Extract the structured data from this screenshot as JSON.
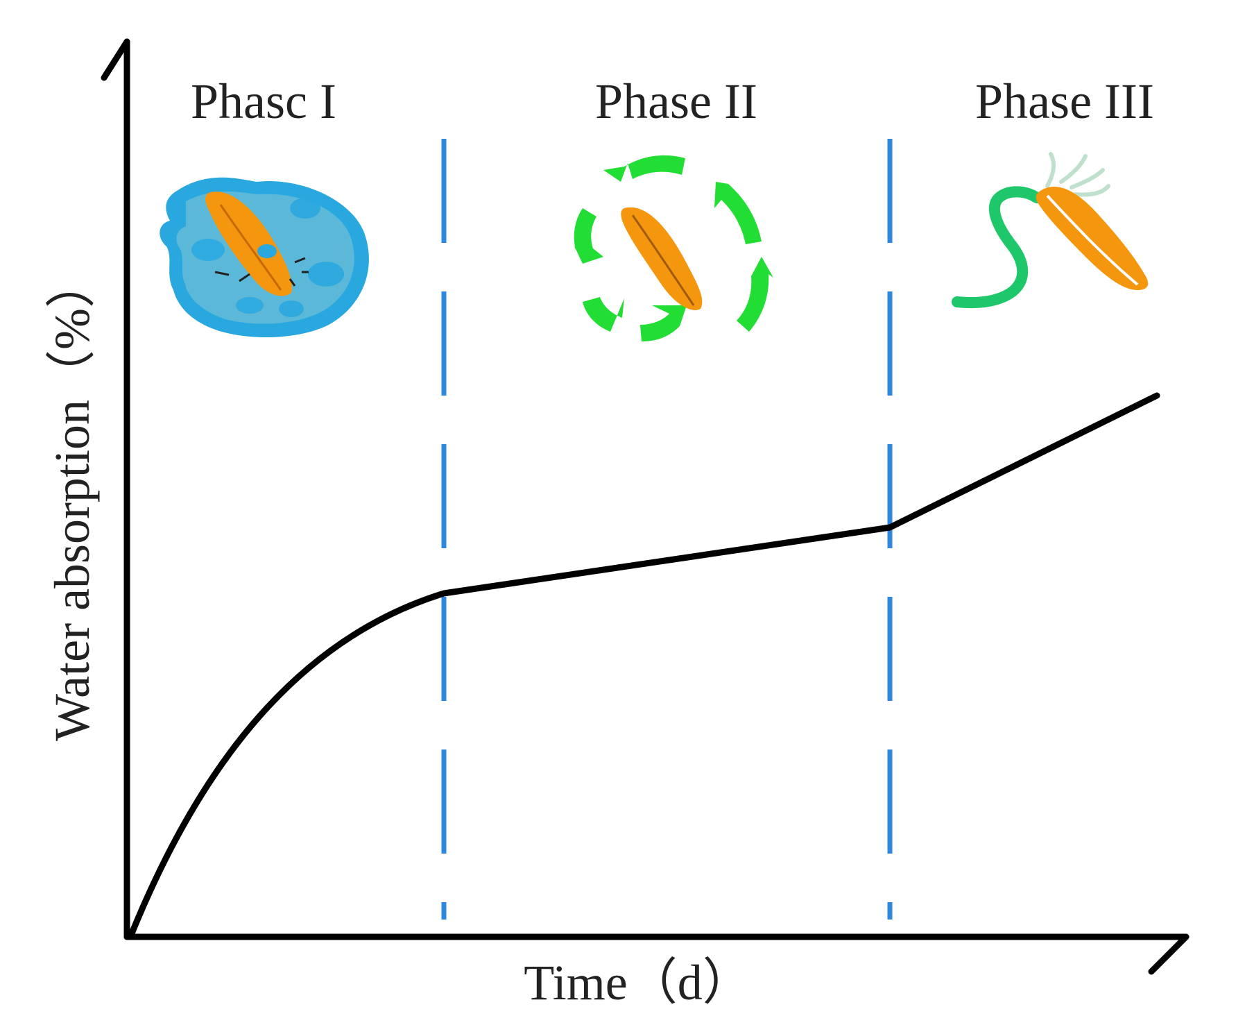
{
  "diagram": {
    "phases": [
      {
        "label": "Phasc I",
        "icon": "seed-in-water-icon"
      },
      {
        "label": "Phase II",
        "icon": "seed-metabolism-cycle-icon"
      },
      {
        "label": "Phase III",
        "icon": "germinating-seed-icon"
      }
    ],
    "x_axis_label": "Time（d）",
    "y_axis_label": "Water absorption（%）",
    "colors": {
      "axis": "#000000",
      "curve": "#000000",
      "divider": "#2e86de",
      "water": "#29a8e0",
      "water_inner": "#5bb8d8",
      "seed": "#f5960f",
      "arrow": "#22dd33",
      "sprout": "#1ec86a",
      "root_hair": "#bfe0cc"
    }
  }
}
